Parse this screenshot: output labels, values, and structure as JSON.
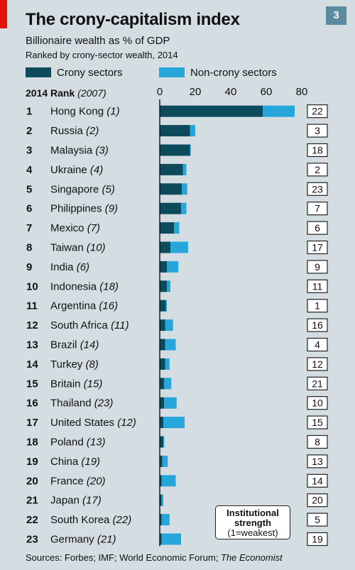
{
  "header": {
    "title": "The crony-capitalism index",
    "badge": "3",
    "subtitle": "Billionaire wealth as % of GDP",
    "subsubtitle": "Ranked by crony-sector wealth, 2014"
  },
  "rank_header": {
    "label": "2014 Rank",
    "prev": "(2007)"
  },
  "callout": {
    "line1": "Institutional",
    "line2": "strength",
    "line3": "(1=weakest)"
  },
  "footer": {
    "sources": "Sources: Forbes; IMF; World Economic Forum; ",
    "sources_italic": "The Economist"
  },
  "colors": {
    "crony": "#0d4a5c",
    "noncrony": "#27a6d9",
    "background": "#d3dde2"
  },
  "chart_data": {
    "type": "bar",
    "orientation": "horizontal",
    "stacked": true,
    "title": "The crony-capitalism index",
    "xlim": [
      0,
      80
    ],
    "xticks": [
      0,
      20,
      40,
      60,
      80
    ],
    "legend": [
      "Crony sectors",
      "Non-crony sectors"
    ],
    "legend_position": "top",
    "grid": false,
    "rows": [
      {
        "rank": "1",
        "country": "Hong Kong",
        "prev": "(1)",
        "crony": 58,
        "noncrony": 18,
        "strength": "22"
      },
      {
        "rank": "2",
        "country": "Russia",
        "prev": "(2)",
        "crony": 17,
        "noncrony": 3,
        "strength": "3"
      },
      {
        "rank": "3",
        "country": "Malaysia",
        "prev": "(3)",
        "crony": 17,
        "noncrony": 0.5,
        "strength": "18"
      },
      {
        "rank": "4",
        "country": "Ukraine",
        "prev": "(4)",
        "crony": 13,
        "noncrony": 2,
        "strength": "2"
      },
      {
        "rank": "5",
        "country": "Singapore",
        "prev": "(5)",
        "crony": 12.5,
        "noncrony": 3,
        "strength": "23"
      },
      {
        "rank": "6",
        "country": "Philippines",
        "prev": "(9)",
        "crony": 12,
        "noncrony": 3,
        "strength": "7"
      },
      {
        "rank": "7",
        "country": "Mexico",
        "prev": "(7)",
        "crony": 8,
        "noncrony": 3,
        "strength": "6"
      },
      {
        "rank": "8",
        "country": "Taiwan",
        "prev": "(10)",
        "crony": 6,
        "noncrony": 10,
        "strength": "17"
      },
      {
        "rank": "9",
        "country": "India",
        "prev": "(6)",
        "crony": 4,
        "noncrony": 6.5,
        "strength": "9"
      },
      {
        "rank": "10",
        "country": "Indonesia",
        "prev": "(18)",
        "crony": 4,
        "noncrony": 2,
        "strength": "11"
      },
      {
        "rank": "11",
        "country": "Argentina",
        "prev": "(16)",
        "crony": 3.5,
        "noncrony": 0.5,
        "strength": "1"
      },
      {
        "rank": "12",
        "country": "South Africa",
        "prev": "(11)",
        "crony": 3,
        "noncrony": 4.5,
        "strength": "16"
      },
      {
        "rank": "13",
        "country": "Brazil",
        "prev": "(14)",
        "crony": 3,
        "noncrony": 6,
        "strength": "4"
      },
      {
        "rank": "14",
        "country": "Turkey",
        "prev": "(8)",
        "crony": 3,
        "noncrony": 2.5,
        "strength": "12"
      },
      {
        "rank": "15",
        "country": "Britain",
        "prev": "(15)",
        "crony": 2.5,
        "noncrony": 4,
        "strength": "21"
      },
      {
        "rank": "16",
        "country": "Thailand",
        "prev": "(23)",
        "crony": 2.5,
        "noncrony": 7,
        "strength": "10"
      },
      {
        "rank": "17",
        "country": "United States",
        "prev": "(12)",
        "crony": 2,
        "noncrony": 12,
        "strength": "15"
      },
      {
        "rank": "18",
        "country": "Poland",
        "prev": "(13)",
        "crony": 2,
        "noncrony": 0.5,
        "strength": "8"
      },
      {
        "rank": "19",
        "country": "China",
        "prev": "(19)",
        "crony": 1.5,
        "noncrony": 3,
        "strength": "13"
      },
      {
        "rank": "20",
        "country": "France",
        "prev": "(20)",
        "crony": 1,
        "noncrony": 8,
        "strength": "14"
      },
      {
        "rank": "21",
        "country": "Japan",
        "prev": "(17)",
        "crony": 1,
        "noncrony": 1,
        "strength": "20"
      },
      {
        "rank": "22",
        "country": "South Korea",
        "prev": "(22)",
        "crony": 1,
        "noncrony": 4.5,
        "strength": "5"
      },
      {
        "rank": "23",
        "country": "Germany",
        "prev": "(21)",
        "crony": 1,
        "noncrony": 11,
        "strength": "19"
      }
    ]
  }
}
